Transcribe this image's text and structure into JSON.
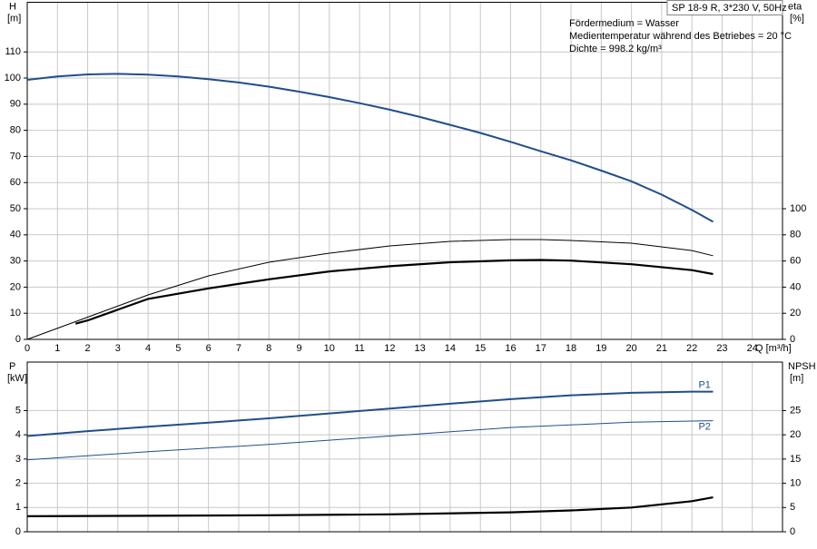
{
  "chart_data": [
    {
      "type": "line",
      "title": "SP 18-9 R, 3*230 V, 50Hz",
      "annotations": [
        "Fördermedium = Wasser",
        "Medientemperatur während des Betriebes = 20 °C",
        "Dichte = 998.2 kg/m³"
      ],
      "ylabel": "H",
      "yunit": "[m]",
      "y2label": "eta",
      "y2unit": "[%]",
      "xlabel": "Q [m³/h]",
      "xlim": [
        0,
        25
      ],
      "xticks": [
        0,
        1,
        2,
        3,
        4,
        5,
        6,
        7,
        8,
        9,
        10,
        11,
        12,
        13,
        14,
        15,
        16,
        17,
        18,
        19,
        20,
        21,
        22,
        23,
        24
      ],
      "ylim": [
        0,
        129
      ],
      "yticks": [
        0,
        10,
        20,
        30,
        40,
        50,
        60,
        70,
        80,
        90,
        100,
        110
      ],
      "y2lim": [
        0,
        258
      ],
      "y2ticks": [
        0,
        20,
        40,
        60,
        80,
        100
      ],
      "grid": true,
      "series": [
        {
          "color": "#1f4e8c",
          "width": 2,
          "x": [
            0,
            1,
            2,
            3,
            4,
            5,
            6,
            7,
            8,
            9,
            10,
            11,
            12,
            13,
            14,
            15,
            16,
            17,
            18,
            19,
            20,
            21,
            22,
            22.7
          ],
          "values": [
            99.3,
            100.6,
            101.4,
            101.6,
            101.3,
            100.6,
            99.6,
            98.3,
            96.7,
            94.8,
            92.7,
            90.4,
            87.9,
            85.1,
            82.1,
            79,
            75.6,
            72,
            68.5,
            64.6,
            60.5,
            55.4,
            49.5,
            45
          ]
        },
        {
          "color": "#000000",
          "width": 1,
          "axis": "y2",
          "x": [
            0,
            2,
            4,
            6,
            8,
            10,
            12,
            14,
            16,
            17,
            18,
            20,
            22,
            22.7
          ],
          "values": [
            0,
            17,
            34,
            48.6,
            59,
            66,
            71.5,
            75,
            76.4,
            76.4,
            75.7,
            73.6,
            68,
            64
          ]
        },
        {
          "color": "#000000",
          "width": 2.2,
          "axis": "y2",
          "x": [
            1.6,
            2,
            4,
            6,
            8,
            10,
            12,
            14,
            16,
            17,
            18,
            20,
            22,
            22.7
          ],
          "values": [
            12,
            14.5,
            31,
            39,
            46,
            52,
            56,
            59,
            60.5,
            60.8,
            60.3,
            57.5,
            53,
            50
          ]
        }
      ]
    },
    {
      "type": "line",
      "ylabel": "P",
      "yunit": "[kW]",
      "y2label": "NPSH",
      "y2unit": "[m]",
      "xlim": [
        0,
        25
      ],
      "ylim": [
        0,
        7
      ],
      "yticks": [
        0,
        1,
        2,
        3,
        4,
        5
      ],
      "y2lim": [
        0,
        35
      ],
      "y2ticks": [
        0,
        5,
        10,
        15,
        20,
        25
      ],
      "grid": true,
      "series": [
        {
          "name": "P1",
          "color": "#1f4e8c",
          "width": 2,
          "x": [
            0,
            2,
            4,
            6,
            8,
            10,
            12,
            14,
            16,
            18,
            20,
            22,
            22.7
          ],
          "values": [
            3.95,
            4.15,
            4.33,
            4.5,
            4.68,
            4.88,
            5.08,
            5.28,
            5.47,
            5.63,
            5.73,
            5.78,
            5.78
          ]
        },
        {
          "name": "P2",
          "color": "#1f4e8c",
          "width": 1,
          "x": [
            0,
            4,
            8,
            12,
            16,
            20,
            22.7
          ],
          "values": [
            2.97,
            3.3,
            3.6,
            3.95,
            4.3,
            4.52,
            4.58
          ]
        },
        {
          "color": "#000000",
          "width": 2.2,
          "axis": "y2",
          "x": [
            0,
            4,
            8,
            12,
            16,
            18,
            20,
            22,
            22.7
          ],
          "values": [
            3.2,
            3.3,
            3.4,
            3.6,
            4,
            4.4,
            5,
            6.3,
            7.1
          ]
        }
      ]
    }
  ]
}
